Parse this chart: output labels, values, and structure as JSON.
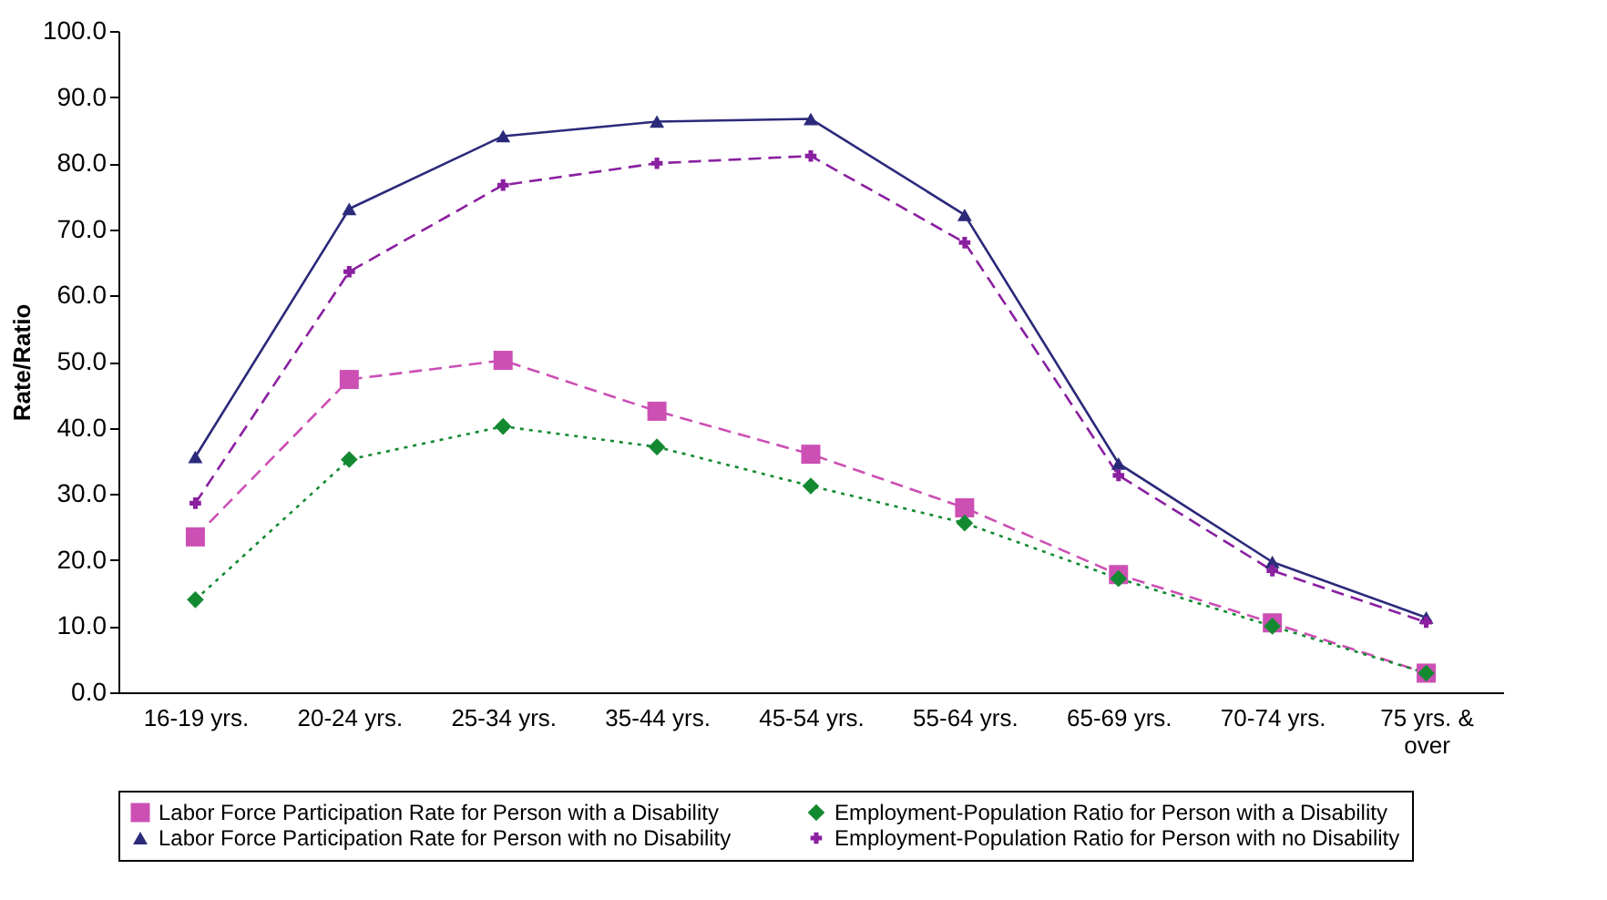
{
  "chart_data": {
    "type": "line",
    "ylabel": "Rate/Ratio",
    "categories": [
      "16-19 yrs.",
      "20-24 yrs.",
      "25-34 yrs.",
      "35-44 yrs.",
      "45-54 yrs.",
      "55-64 yrs.",
      "65-69 yrs.",
      "70-74 yrs.",
      "75 yrs. & over"
    ],
    "series": [
      {
        "name": "Labor Force Participation Rate for Person with a Disability",
        "color": "#cc4fb4",
        "marker": "square",
        "line_style": "dashed",
        "values": [
          23.5,
          47.3,
          50.2,
          42.5,
          36.0,
          27.9,
          17.8,
          10.5,
          2.9
        ]
      },
      {
        "name": "Employment-Population Ratio for Person with a Disability",
        "color": "#138a32",
        "marker": "diamond",
        "line_style": "dotted",
        "values": [
          14.0,
          35.2,
          40.2,
          37.1,
          31.2,
          25.6,
          17.2,
          10.0,
          2.9
        ]
      },
      {
        "name": "Labor Force Participation Rate for Person with no Disability",
        "color": "#2b2a7a",
        "marker": "triangle",
        "line_style": "solid",
        "values": [
          35.6,
          73.1,
          84.1,
          86.3,
          86.7,
          72.2,
          34.6,
          19.7,
          11.3
        ]
      },
      {
        "name": "Employment-Population Ratio for Person with no Disability",
        "color": "#8a1fa0",
        "marker": "cross",
        "line_style": "dashed",
        "values": [
          28.6,
          63.6,
          76.7,
          80.0,
          81.1,
          68.0,
          32.8,
          18.4,
          10.6
        ]
      }
    ],
    "ylim": [
      0,
      100
    ],
    "yticks": [
      {
        "value": 0,
        "label": "0.0"
      },
      {
        "value": 10,
        "label": "10.0"
      },
      {
        "value": 20,
        "label": "20.0"
      },
      {
        "value": 30,
        "label": "30.0"
      },
      {
        "value": 40,
        "label": "40.0"
      },
      {
        "value": 50,
        "label": "50.0"
      },
      {
        "value": 60,
        "label": "60.0"
      },
      {
        "value": 70,
        "label": "70.0"
      },
      {
        "value": 80,
        "label": "80.0"
      },
      {
        "value": 90,
        "label": "90.0"
      },
      {
        "value": 100,
        "label": "100.0"
      }
    ],
    "grid": false,
    "legend": "bottom"
  }
}
